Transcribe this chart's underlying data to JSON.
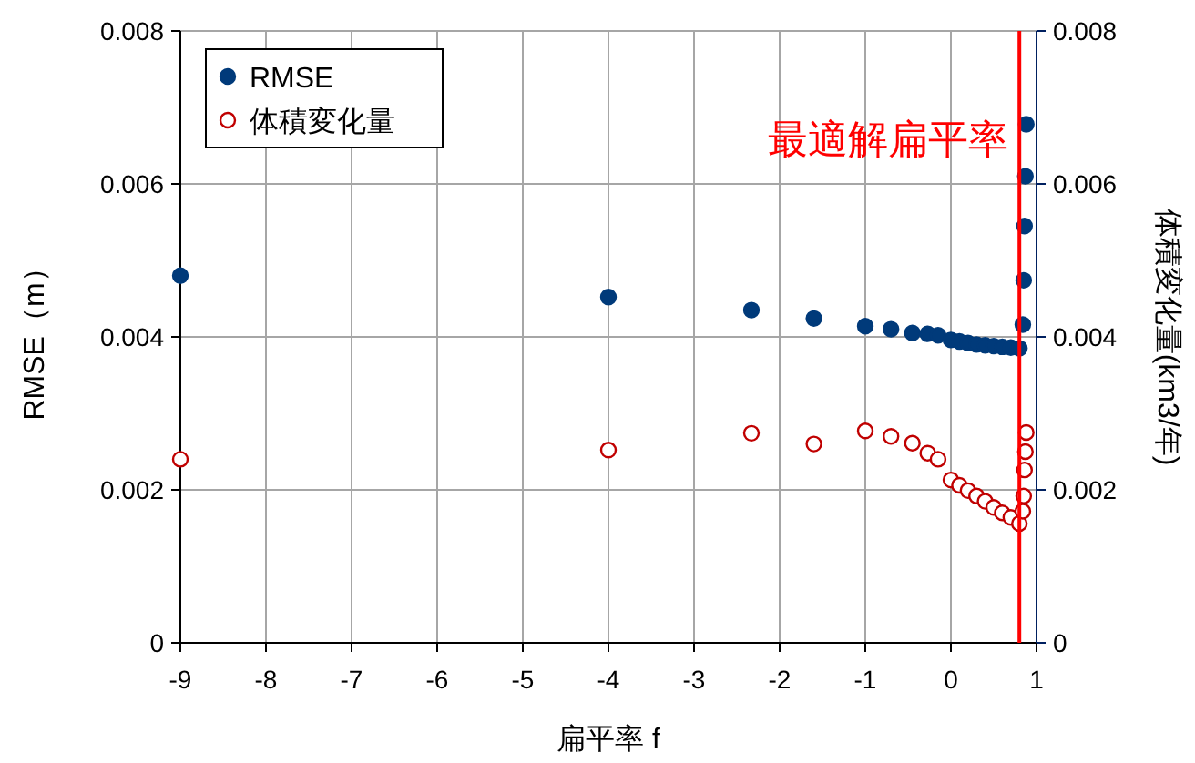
{
  "chart_data": {
    "type": "scatter",
    "xlabel": "扁平率 f",
    "ylabel": "RMSE（m）",
    "y2label": "体積変化量(km3/年)",
    "xlim": [
      -9,
      1
    ],
    "xticks": [
      -9,
      -8,
      -7,
      -6,
      -5,
      -4,
      -3,
      -2,
      -1,
      0,
      1
    ],
    "ylim": [
      0,
      0.008
    ],
    "yticks": [
      0,
      0.002,
      0.004,
      0.006,
      0.008
    ],
    "y2lim": [
      0,
      0.008
    ],
    "y2ticks": [
      0,
      0.002,
      0.004,
      0.006,
      0.008
    ],
    "grid": true,
    "legend": "top left",
    "marker": "circle",
    "ref_lines": [
      {
        "axis": "x",
        "value": 0.8,
        "label": "最適解扁平率",
        "color": "#ff0000"
      }
    ],
    "series": [
      {
        "name": "RMSE",
        "color": "#003a7a",
        "x": [
          -9,
          -4,
          -2.33,
          -1.6,
          -1,
          -0.7,
          -0.45,
          -0.27,
          -0.15,
          0,
          0.1,
          0.2,
          0.3,
          0.4,
          0.5,
          0.6,
          0.7,
          0.8,
          0.84,
          0.85,
          0.86,
          0.87,
          0.88
        ],
        "values": [
          0.0048,
          0.00452,
          0.00435,
          0.00424,
          0.00414,
          0.0041,
          0.00405,
          0.00404,
          0.00402,
          0.00396,
          0.00394,
          0.00392,
          0.0039,
          0.00389,
          0.00388,
          0.00387,
          0.00386,
          0.00385,
          0.00416,
          0.00474,
          0.00545,
          0.0061,
          0.00678
        ]
      },
      {
        "name": "体積変化量",
        "color": "#c00000",
        "axis": "y2",
        "x": [
          -9,
          -4,
          -2.33,
          -1.6,
          -1,
          -0.7,
          -0.45,
          -0.27,
          -0.15,
          0,
          0.1,
          0.2,
          0.3,
          0.4,
          0.5,
          0.6,
          0.7,
          0.8,
          0.84,
          0.85,
          0.86,
          0.87,
          0.88
        ],
        "values": [
          0.0024,
          0.00252,
          0.00274,
          0.0026,
          0.00277,
          0.0027,
          0.00261,
          0.00248,
          0.0024,
          0.00213,
          0.00206,
          0.00199,
          0.00192,
          0.00185,
          0.00177,
          0.0017,
          0.00164,
          0.00156,
          0.00172,
          0.00192,
          0.00226,
          0.0025,
          0.00275
        ]
      }
    ]
  }
}
